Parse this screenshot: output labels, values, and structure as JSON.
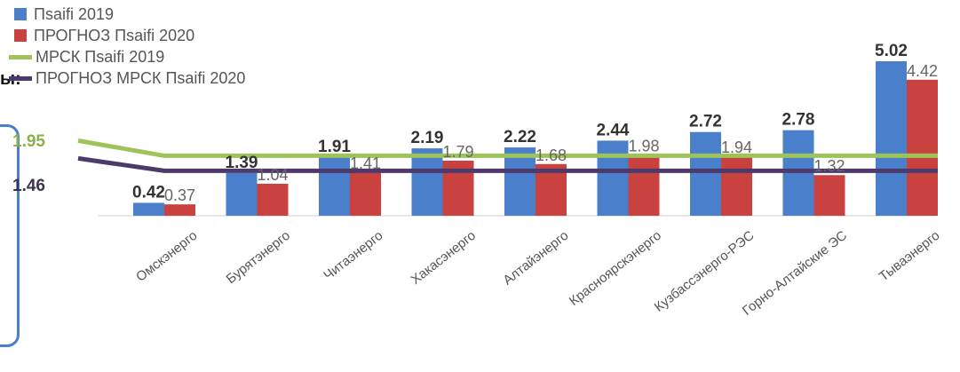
{
  "side_fragment": "ы:",
  "line_labels": {
    "mrsk_2019": "1.95",
    "mrsk_2020": "1.46"
  },
  "colors": {
    "s2019": "#4a7fcc",
    "s2020": "#c9423f",
    "mrsk2019": "#9dc35a",
    "mrsk2020": "#4c3a6b",
    "frame": "#4a7fd0"
  },
  "chart_data": {
    "type": "bar",
    "categories": [
      "Омскэнерго",
      "Бурятэнерго",
      "Читаэнерго",
      "Хакасэнерго",
      "Алтайэнерго",
      "Красноярскэнерго",
      "Кузбассэнерго-РЭС",
      "Горно-Алтайские ЭС",
      "Тываэнерго"
    ],
    "series": [
      {
        "name": "Пsaifi 2019",
        "values": [
          0.42,
          1.39,
          1.91,
          2.19,
          2.22,
          2.44,
          2.72,
          2.78,
          5.02
        ],
        "labels": [
          "0.42",
          "1.39",
          "1.91",
          "2.19",
          "2.22",
          "2.44",
          "2.72",
          "2.78",
          "5.02"
        ]
      },
      {
        "name": "ПРОГНОЗ Пsaifi 2020",
        "values": [
          0.37,
          1.04,
          1.41,
          1.79,
          1.68,
          1.98,
          1.94,
          1.32,
          4.42
        ],
        "labels": [
          "0.37",
          "1.04",
          "1.41",
          "1.79",
          "1.68",
          "1.98",
          "1.94",
          "1.32",
          "4.42"
        ]
      }
    ],
    "lines": [
      {
        "name": "МРСК Пsaifi 2019",
        "value": 1.95
      },
      {
        "name": "ПРОГНОЗ МРСК Пsaifi 2020",
        "value": 1.46
      }
    ],
    "ylim": [
      0,
      5.3
    ],
    "grid": false,
    "legend": "top-left"
  }
}
